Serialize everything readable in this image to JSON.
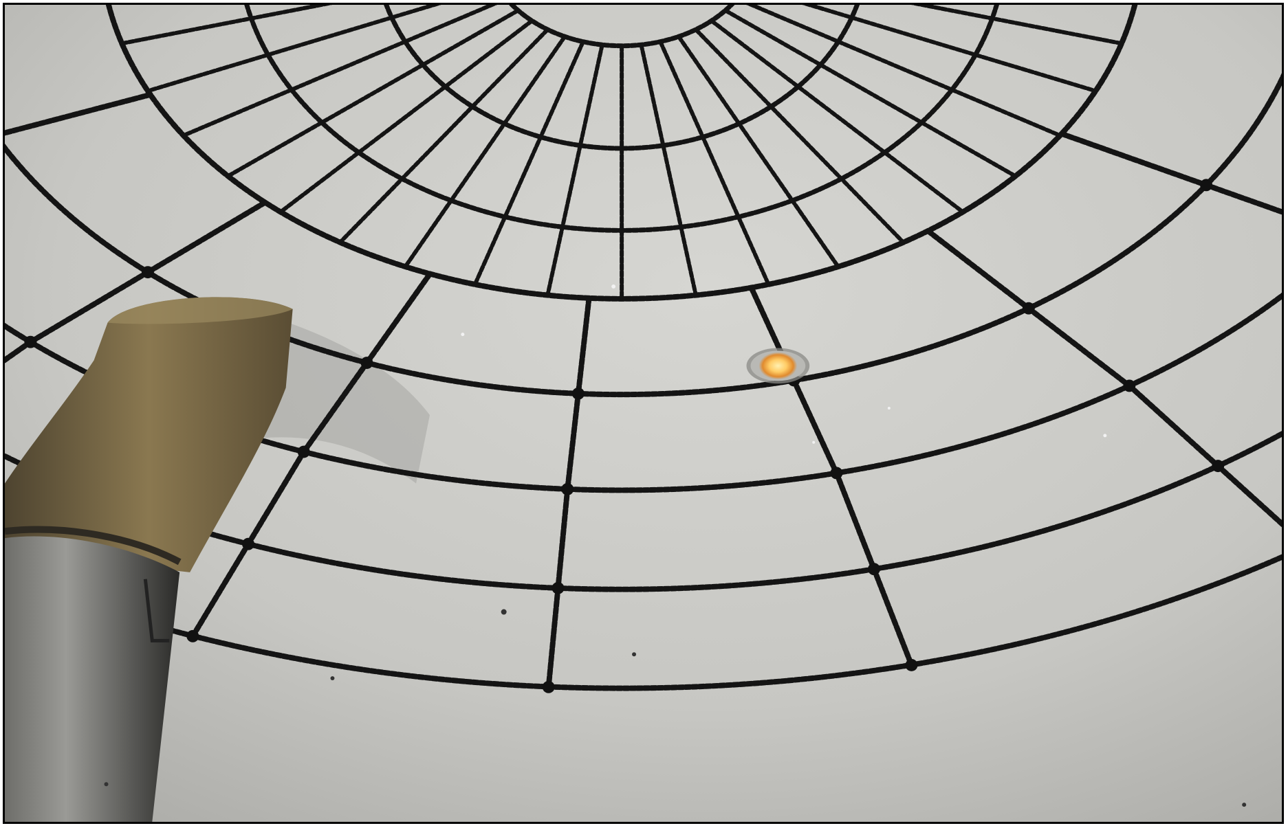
{
  "image": {
    "subject": "planetarium-dome-interior",
    "colors": {
      "dome": "#c9c9c5",
      "dome_light": "#d3d3cf",
      "dome_dark": "#9c9c98",
      "grid_line": "#141414",
      "planet_glow": "#f4a94a",
      "planet_core": "#ffd27a",
      "projector_head": "#7d6a44",
      "projector_body": "#3a3a38"
    }
  }
}
